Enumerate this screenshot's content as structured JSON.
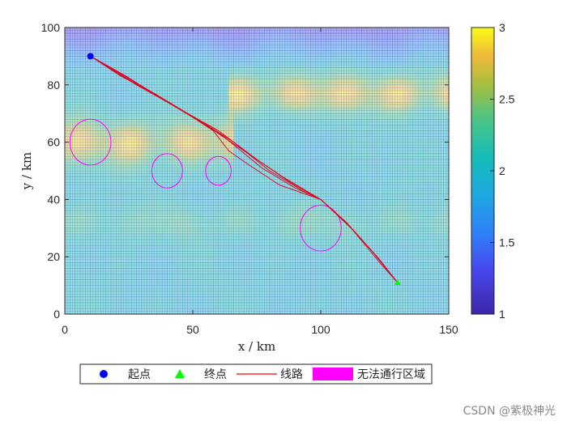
{
  "chart_data": {
    "type": "heatmap",
    "title": "",
    "xlabel": "x / km",
    "ylabel": "y / km",
    "xlim": [
      0,
      150
    ],
    "ylim": [
      0,
      100
    ],
    "xticks": [
      0,
      50,
      100,
      150
    ],
    "yticks": [
      0,
      20,
      40,
      60,
      80,
      100
    ],
    "colorbar": {
      "range": [
        1,
        3
      ],
      "ticks": [
        1,
        1.5,
        2,
        2.5,
        3
      ],
      "tick_labels": [
        "1",
        "1.5",
        "2",
        "2.5",
        "3"
      ],
      "colormap": "parula"
    },
    "terrain_bands": [
      {
        "x_range": [
          0,
          60
        ],
        "y_center": 60,
        "half_width": 8,
        "level": 2.9
      },
      {
        "x_range": [
          70,
          150
        ],
        "y_center": 77,
        "half_width": 7,
        "level": 2.9
      },
      {
        "x_range": [
          0,
          150
        ],
        "y_center": 32,
        "half_width": 6,
        "level": 2.3
      }
    ],
    "start": {
      "x": 10,
      "y": 90,
      "label": "起点",
      "color": "#0000ff"
    },
    "end": {
      "x": 130,
      "y": 11,
      "label": "终点",
      "color": "#00ff00"
    },
    "obstacles": [
      {
        "cx": 10,
        "cy": 60,
        "r": 8
      },
      {
        "cx": 40,
        "cy": 50,
        "r": 6
      },
      {
        "cx": 60,
        "cy": 50,
        "r": 5
      },
      {
        "cx": 100,
        "cy": 30,
        "r": 8
      }
    ],
    "routes": [
      {
        "points": [
          [
            10,
            90
          ],
          [
            25,
            82
          ],
          [
            40,
            74
          ],
          [
            55,
            66
          ],
          [
            70,
            57
          ],
          [
            85,
            48
          ],
          [
            100,
            40
          ],
          [
            110,
            32
          ],
          [
            120,
            22
          ],
          [
            130,
            11
          ]
        ]
      },
      {
        "points": [
          [
            10,
            90
          ],
          [
            22,
            83
          ],
          [
            35,
            77
          ],
          [
            48,
            70
          ],
          [
            62,
            62
          ],
          [
            77,
            51
          ],
          [
            90,
            44
          ],
          [
            100,
            40
          ],
          [
            112,
            30
          ],
          [
            122,
            20
          ],
          [
            130,
            11
          ]
        ]
      },
      {
        "points": [
          [
            10,
            90
          ],
          [
            28,
            80
          ],
          [
            44,
            72
          ],
          [
            60,
            64
          ],
          [
            75,
            54
          ],
          [
            88,
            46
          ],
          [
            100,
            40
          ],
          [
            111,
            31
          ],
          [
            121,
            21
          ],
          [
            130,
            11
          ]
        ]
      },
      {
        "points": [
          [
            10,
            90
          ],
          [
            20,
            85
          ],
          [
            33,
            78
          ],
          [
            46,
            71
          ],
          [
            58,
            64
          ],
          [
            64,
            57
          ],
          [
            72,
            52
          ],
          [
            84,
            45
          ],
          [
            100,
            40
          ],
          [
            113,
            29
          ],
          [
            123,
            19
          ],
          [
            130,
            11
          ]
        ]
      },
      {
        "points": [
          [
            10,
            90
          ],
          [
            24,
            83
          ],
          [
            38,
            75
          ],
          [
            52,
            68
          ],
          [
            66,
            60
          ],
          [
            80,
            50
          ],
          [
            93,
            43
          ],
          [
            100,
            40
          ],
          [
            110,
            32
          ],
          [
            124,
            17
          ],
          [
            130,
            11
          ]
        ]
      }
    ],
    "legend": {
      "placement": "bottom",
      "items": [
        {
          "label": "起点",
          "marker": "circle",
          "color": "#0000ff"
        },
        {
          "label": "终点",
          "marker": "triangle",
          "color": "#00ff00"
        },
        {
          "label": "线路",
          "marker": "line",
          "color": "#ff0000"
        },
        {
          "label": "无法通行区域",
          "marker": "patch",
          "color": "#ff00ff"
        }
      ]
    }
  },
  "watermark": "CSDN @紫极神光"
}
